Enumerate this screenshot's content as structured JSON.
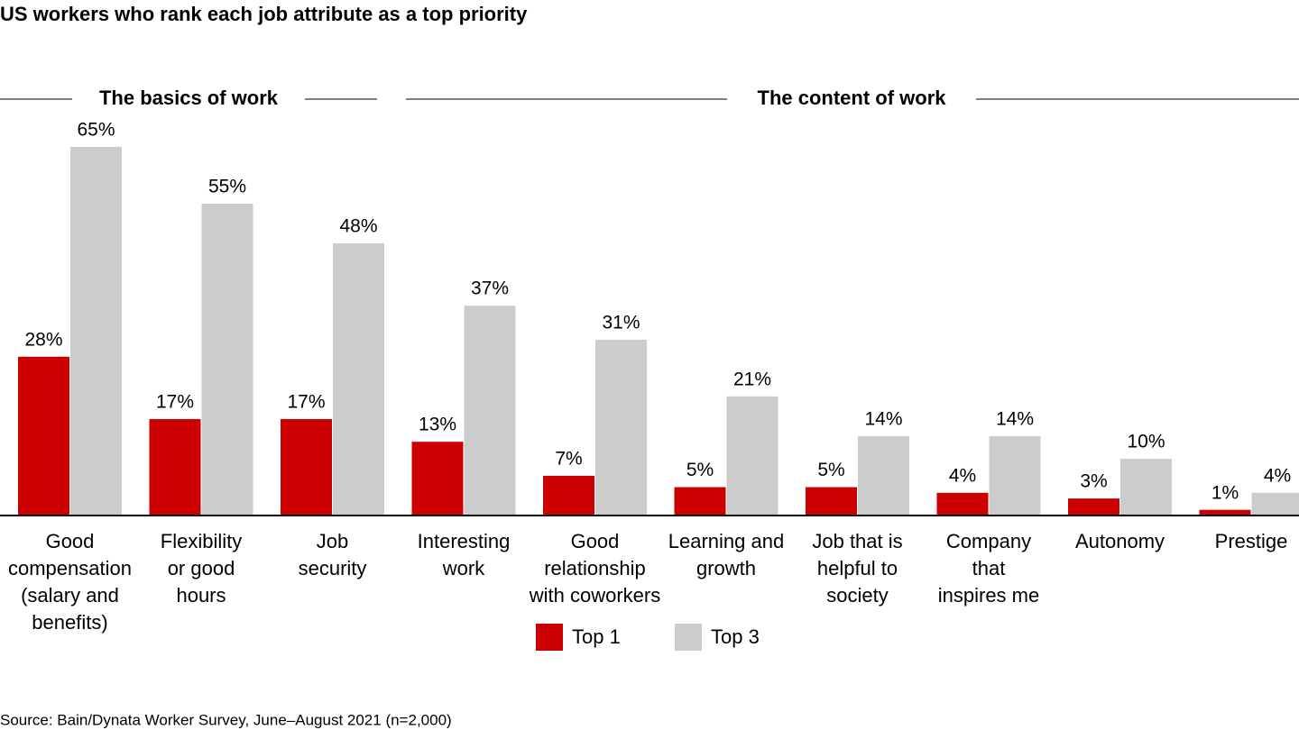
{
  "chart_data": {
    "type": "bar",
    "title": "US workers who rank each job attribute as a top priority",
    "groups": [
      "The basics of work",
      "The content of work"
    ],
    "categories": [
      "Good\ncompensation\n(salary and\nbenefits)",
      "Flexibility\nor good\nhours",
      "Job\nsecurity",
      "Interesting\nwork",
      "Good\nrelationship\nwith coworkers",
      "Learning and\ngrowth",
      "Job that is\nhelpful to\nsociety",
      "Company\nthat\ninspires me",
      "Autonomy",
      "Prestige"
    ],
    "series": [
      {
        "name": "Top 1",
        "color": "#cc0000",
        "values": [
          28,
          17,
          17,
          13,
          7,
          5,
          5,
          4,
          3,
          1
        ],
        "value_labels": [
          "28%",
          "17%",
          "17%",
          "13%",
          "7%",
          "5%",
          "5%",
          "4%",
          "3%",
          "1%"
        ]
      },
      {
        "name": "Top 3",
        "color": "#cccccc",
        "values": [
          65,
          55,
          48,
          37,
          31,
          21,
          14,
          14,
          10,
          4
        ],
        "value_labels": [
          "65%",
          "55%",
          "48%",
          "37%",
          "31%",
          "21%",
          "14%",
          "14%",
          "10%",
          "4%"
        ]
      }
    ],
    "source": "Source: Bain/Dynata Worker Survey, June–August 2021 (n=2,000)"
  }
}
